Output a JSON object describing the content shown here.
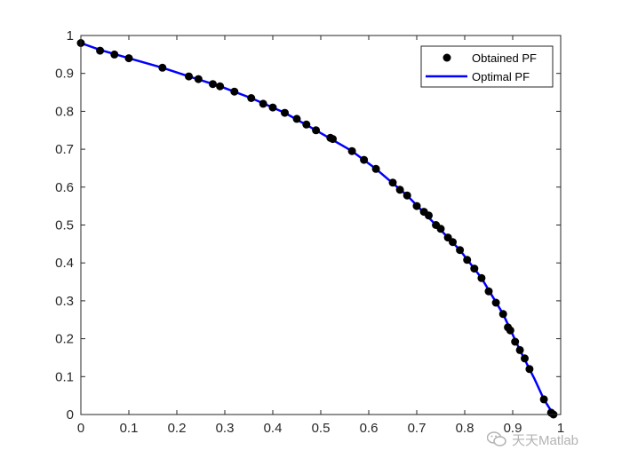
{
  "chart_data": {
    "type": "scatter",
    "title": "",
    "xlabel": "",
    "ylabel": "",
    "xlim": [
      0,
      1
    ],
    "ylim": [
      0,
      1
    ],
    "x_ticks": [
      "0",
      "0.1",
      "0.2",
      "0.3",
      "0.4",
      "0.5",
      "0.6",
      "0.7",
      "0.8",
      "0.9",
      "1"
    ],
    "y_ticks": [
      "0",
      "0.1",
      "0.2",
      "0.3",
      "0.4",
      "0.5",
      "0.6",
      "0.7",
      "0.8",
      "0.9",
      "1"
    ],
    "grid": false,
    "legend_position": "top-right",
    "series": [
      {
        "name": "Obtained PF",
        "marker": "filled-circle",
        "color": "#000000",
        "points": [
          [
            0.0,
            0.98
          ],
          [
            0.04,
            0.96
          ],
          [
            0.07,
            0.95
          ],
          [
            0.1,
            0.94
          ],
          [
            0.17,
            0.915
          ],
          [
            0.225,
            0.892
          ],
          [
            0.245,
            0.885
          ],
          [
            0.275,
            0.872
          ],
          [
            0.29,
            0.866
          ],
          [
            0.32,
            0.852
          ],
          [
            0.355,
            0.835
          ],
          [
            0.38,
            0.82
          ],
          [
            0.4,
            0.81
          ],
          [
            0.425,
            0.796
          ],
          [
            0.45,
            0.78
          ],
          [
            0.47,
            0.765
          ],
          [
            0.49,
            0.75
          ],
          [
            0.52,
            0.73
          ],
          [
            0.525,
            0.727
          ],
          [
            0.565,
            0.695
          ],
          [
            0.59,
            0.672
          ],
          [
            0.615,
            0.648
          ],
          [
            0.65,
            0.612
          ],
          [
            0.665,
            0.593
          ],
          [
            0.68,
            0.578
          ],
          [
            0.7,
            0.55
          ],
          [
            0.715,
            0.535
          ],
          [
            0.725,
            0.525
          ],
          [
            0.74,
            0.5
          ],
          [
            0.75,
            0.49
          ],
          [
            0.765,
            0.467
          ],
          [
            0.775,
            0.455
          ],
          [
            0.79,
            0.434
          ],
          [
            0.805,
            0.408
          ],
          [
            0.82,
            0.385
          ],
          [
            0.835,
            0.36
          ],
          [
            0.85,
            0.325
          ],
          [
            0.865,
            0.295
          ],
          [
            0.88,
            0.265
          ],
          [
            0.89,
            0.23
          ],
          [
            0.895,
            0.222
          ],
          [
            0.905,
            0.192
          ],
          [
            0.915,
            0.17
          ],
          [
            0.925,
            0.148
          ],
          [
            0.935,
            0.12
          ],
          [
            0.965,
            0.04
          ],
          [
            0.98,
            0.005
          ],
          [
            0.985,
            0.0
          ]
        ]
      },
      {
        "name": "Optimal PF",
        "marker": "line",
        "color": "#0000ff",
        "points": [
          [
            0.0,
            0.98
          ],
          [
            0.04,
            0.962
          ],
          [
            0.1,
            0.94
          ],
          [
            0.17,
            0.915
          ],
          [
            0.225,
            0.892
          ],
          [
            0.29,
            0.866
          ],
          [
            0.355,
            0.835
          ],
          [
            0.425,
            0.796
          ],
          [
            0.49,
            0.75
          ],
          [
            0.565,
            0.695
          ],
          [
            0.615,
            0.648
          ],
          [
            0.68,
            0.578
          ],
          [
            0.74,
            0.5
          ],
          [
            0.79,
            0.434
          ],
          [
            0.835,
            0.36
          ],
          [
            0.88,
            0.265
          ],
          [
            0.915,
            0.17
          ],
          [
            0.945,
            0.095
          ],
          [
            0.965,
            0.04
          ],
          [
            0.985,
            0.0
          ]
        ]
      }
    ]
  },
  "watermark": {
    "text": "天天Matlab",
    "icon": "wechat-icon"
  }
}
